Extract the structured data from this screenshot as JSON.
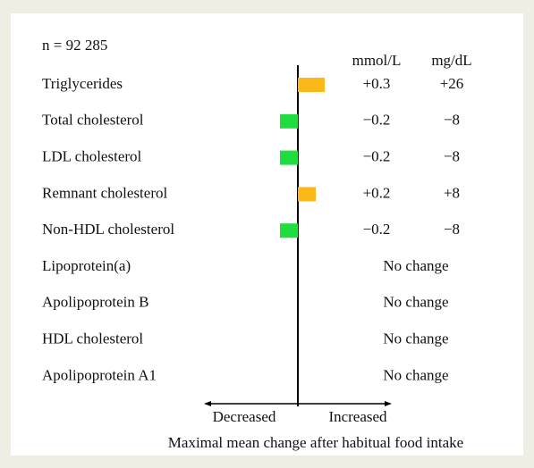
{
  "chart_data": {
    "type": "diverging-bar",
    "annotation": "n = 92 285",
    "categories": [
      "Triglycerides",
      "Total cholesterol",
      "LDL cholesterol",
      "Remnant cholesterol",
      "Non-HDL cholesterol",
      "Lipoprotein(a)",
      "Apolipoprotein B",
      "HDL cholesterol",
      "Apolipoprotein A1"
    ],
    "series": [
      {
        "name": "mmol/L",
        "values": [
          0.3,
          -0.2,
          -0.2,
          0.2,
          -0.2,
          null,
          null,
          null,
          null
        ],
        "value_labels": [
          "+0.3",
          "−0.2",
          "−0.2",
          "+0.2",
          "−0.2",
          null,
          null,
          null,
          null
        ]
      },
      {
        "name": "mg/dL",
        "values": [
          26,
          -8,
          -8,
          8,
          -8,
          null,
          null,
          null,
          null
        ],
        "value_labels": [
          "+26",
          "−8",
          "−8",
          "+8",
          "−8",
          null,
          null,
          null,
          null
        ]
      }
    ],
    "bar_series": 0,
    "increase_color": "#fbb919",
    "decrease_color": "#1fdc3f",
    "no_change_label": "No change",
    "xlim": [
      -1.05,
      1.05
    ],
    "x_left_label": "Decreased",
    "x_right_label": "Increased",
    "xlabel": "Maximal mean change after habitual food intake"
  }
}
